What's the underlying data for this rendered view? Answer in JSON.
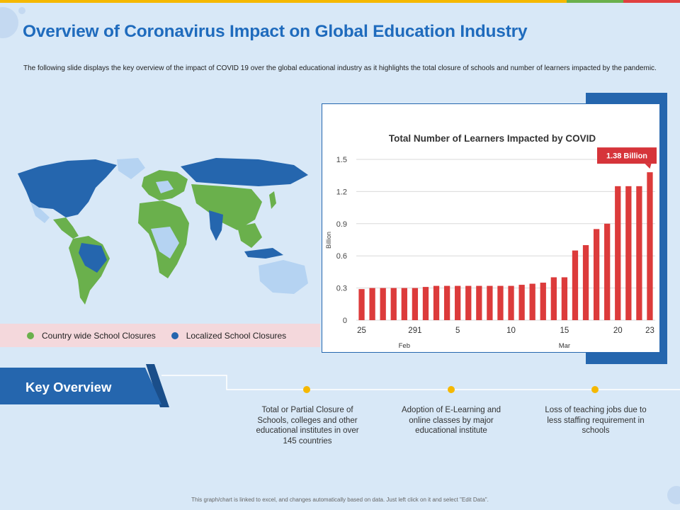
{
  "header": {
    "title": "Overview of Coronavirus Impact on Global Education Industry",
    "description": "The following slide displays the key overview of the impact of COVID  19 over the global educational industry as it highlights the total closure of schools and number of learners impacted by the pandemic."
  },
  "colors": {
    "accent_blue": "#2566ae",
    "title_blue": "#1f6bbd",
    "bar_red": "#dc3b3b",
    "green": "#6ab04c",
    "yellow": "#f5b800",
    "light_blue": "#b5d3f2"
  },
  "map_legend": {
    "country_wide": "Country wide School Closures",
    "localized": "Localized School Closures"
  },
  "chart_data": {
    "type": "bar",
    "title": "Total Number of Learners Impacted by COVID",
    "ylabel": "Billion",
    "ylim": [
      0,
      1.5
    ],
    "yticks": [
      0,
      0.3,
      0.6,
      0.9,
      1.2,
      1.5
    ],
    "ytick_labels": [
      "0",
      "0.3",
      "0.6",
      "0.9",
      "1.2",
      "1.5"
    ],
    "values": [
      0.29,
      0.3,
      0.3,
      0.3,
      0.3,
      0.3,
      0.31,
      0.32,
      0.32,
      0.32,
      0.32,
      0.32,
      0.32,
      0.32,
      0.32,
      0.33,
      0.34,
      0.35,
      0.4,
      0.4,
      0.65,
      0.7,
      0.85,
      0.9,
      1.25,
      1.25,
      1.25,
      1.38
    ],
    "xtick_labels": [
      {
        "index": 0,
        "label": "25"
      },
      {
        "index": 5,
        "label": "291"
      },
      {
        "index": 9,
        "label": "5"
      },
      {
        "index": 14,
        "label": "10"
      },
      {
        "index": 19,
        "label": "15"
      },
      {
        "index": 24,
        "label": "20"
      },
      {
        "index": 27,
        "label": "23"
      }
    ],
    "month_labels": [
      {
        "index": 4,
        "label": "Feb"
      },
      {
        "index": 19,
        "label": "Mar"
      }
    ],
    "callout": {
      "index": 27,
      "label": "1.38 Billion"
    },
    "grid": true
  },
  "key_overview": {
    "heading": "Key Overview",
    "points": [
      "Total or Partial Closure of Schools, colleges and other educational institutes in over 145 countries",
      "Adoption of E-Learning and online classes by major educational institute",
      "Loss of teaching jobs due to less staffing requirement in schools"
    ]
  },
  "footer": "This graph/chart is linked to excel, and changes automatically based on data. Just left click on it and select \"Edit Data\"."
}
